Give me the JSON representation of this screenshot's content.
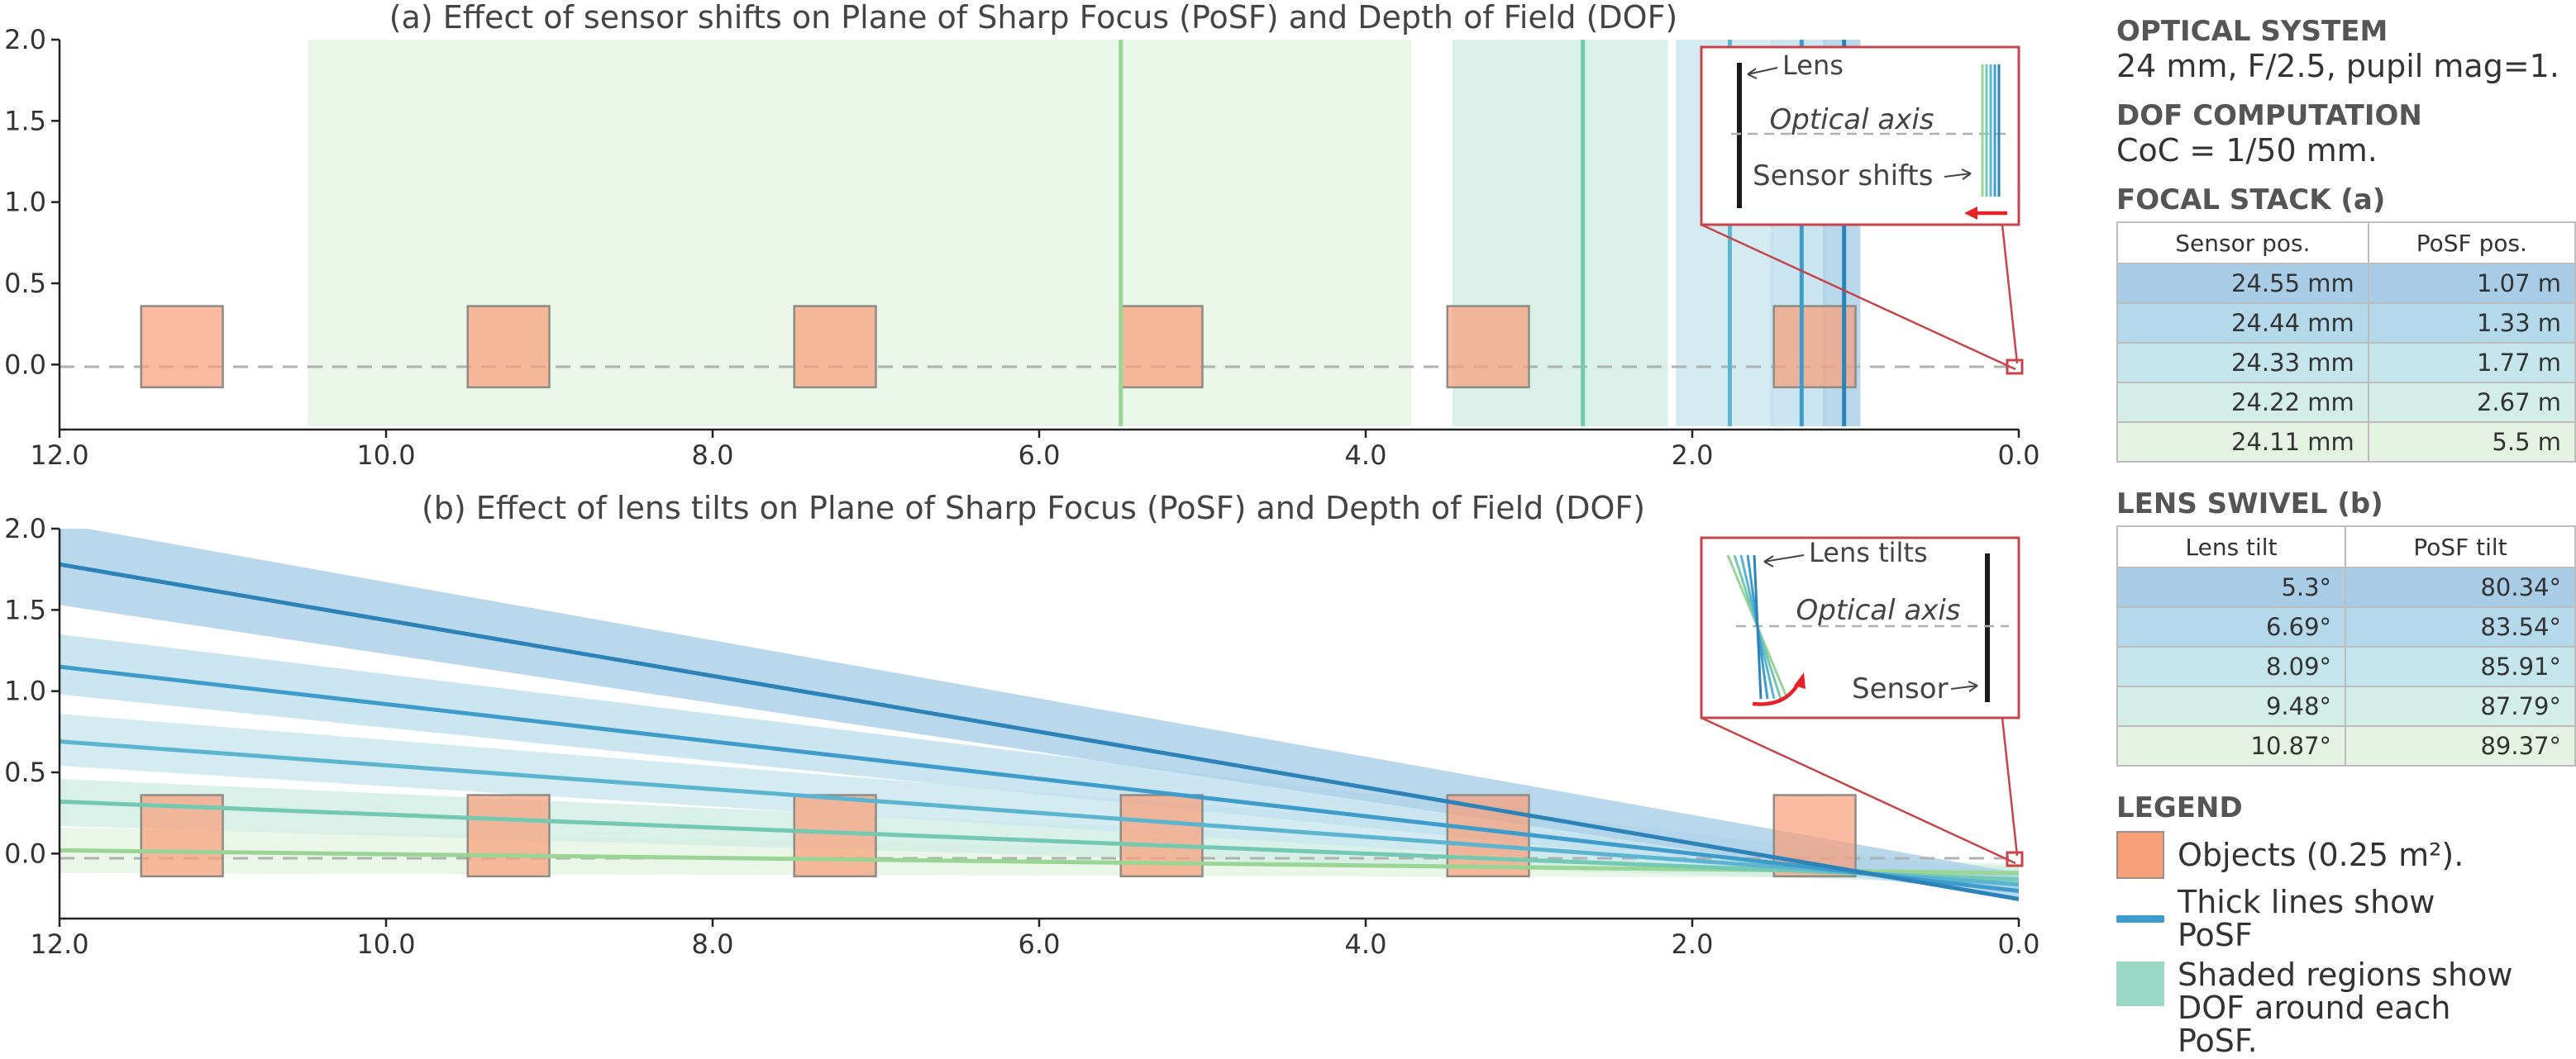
{
  "panel_a": {
    "title": "(a) Effect of sensor shifts on Plane of Sharp Focus (PoSF) and Depth of Field (DOF)",
    "inset": {
      "lens_label": "Lens",
      "axis_label": "Optical axis",
      "sensor_label": "Sensor shifts"
    }
  },
  "panel_b": {
    "title": "(b) Effect of lens tilts on Plane of Sharp Focus (PoSF) and Depth of Field (DOF)",
    "inset": {
      "lens_label": "Lens tilts",
      "axis_label": "Optical axis",
      "sensor_label": "Sensor"
    }
  },
  "side": {
    "optical_heading": "OPTICAL SYSTEM",
    "optical_text": "24 mm, F/2.5, pupil mag=1.",
    "dof_heading": "DOF COMPUTATION",
    "dof_text": "CoC = 1/50 mm.",
    "focal_heading": "FOCAL STACK (a)",
    "focal_table": {
      "headers": [
        "Sensor pos.",
        "PoSF pos."
      ],
      "rows": [
        [
          "24.55 mm",
          "1.07 m"
        ],
        [
          "24.44 mm",
          "1.33 m"
        ],
        [
          "24.33 mm",
          "1.77 m"
        ],
        [
          "24.22 mm",
          "2.67 m"
        ],
        [
          "24.11 mm",
          "5.5 m"
        ]
      ]
    },
    "swivel_heading": "LENS SWIVEL (b)",
    "swivel_table": {
      "headers": [
        "Lens tilt",
        "PoSF tilt"
      ],
      "rows": [
        [
          "5.3°",
          "80.34°"
        ],
        [
          "6.69°",
          "83.54°"
        ],
        [
          "8.09°",
          "85.91°"
        ],
        [
          "9.48°",
          "87.79°"
        ],
        [
          "10.87°",
          "89.37°"
        ]
      ]
    },
    "legend_heading": "LEGEND",
    "legend": [
      {
        "label": "Objects (0.25 m²)."
      },
      {
        "label": "Thick lines show PoSF"
      },
      {
        "label": "Shaded regions show",
        "label2": "DOF around each PoSF."
      }
    ]
  },
  "chart_data": [
    {
      "type": "diagram",
      "title": "(a) Effect of sensor shifts on Plane of Sharp Focus (PoSF) and Depth of Field (DOF)",
      "xlim": [
        12.0,
        0.0
      ],
      "ylim": [
        -0.4,
        2.0
      ],
      "x_ticks": [
        "12.0",
        "10.0",
        "8.0",
        "6.0",
        "4.0",
        "2.0",
        "0.0"
      ],
      "y_ticks": [
        "2.0",
        "1.5",
        "1.0",
        "0.5",
        "0.0"
      ],
      "objects": [
        {
          "x": [
            11.0,
            11.5
          ],
          "y": [
            -0.14,
            0.36
          ]
        },
        {
          "x": [
            9.0,
            9.5
          ],
          "y": [
            -0.14,
            0.36
          ]
        },
        {
          "x": [
            7.0,
            7.5
          ],
          "y": [
            -0.14,
            0.36
          ]
        },
        {
          "x": [
            5.0,
            5.5
          ],
          "y": [
            -0.14,
            0.36
          ]
        },
        {
          "x": [
            3.0,
            3.5
          ],
          "y": [
            -0.14,
            0.36
          ]
        },
        {
          "x": [
            1.0,
            1.5
          ],
          "y": [
            -0.14,
            0.36
          ]
        }
      ],
      "series": [
        {
          "posf": 1.07,
          "dof": [
            0.97,
            1.2
          ],
          "color": "#2b83ba"
        },
        {
          "posf": 1.33,
          "dof": [
            1.18,
            1.52
          ],
          "color": "#3d9ccb"
        },
        {
          "posf": 1.77,
          "dof": [
            1.5,
            2.1
          ],
          "color": "#5bb5d0"
        },
        {
          "posf": 2.67,
          "dof": [
            2.15,
            3.47
          ],
          "color": "#74c9b4"
        },
        {
          "posf": 5.5,
          "dof": [
            3.72,
            10.48
          ],
          "color": "#99d594"
        }
      ]
    },
    {
      "type": "diagram",
      "title": "(b) Effect of lens tilts on Plane of Sharp Focus (PoSF) and Depth of Field (DOF)",
      "xlim": [
        12.0,
        0.0
      ],
      "ylim": [
        -0.4,
        2.0
      ],
      "x_ticks": [
        "12.0",
        "10.0",
        "8.0",
        "6.0",
        "4.0",
        "2.0",
        "0.0"
      ],
      "y_ticks": [
        "2.0",
        "1.5",
        "1.0",
        "0.5",
        "0.0"
      ],
      "objects": [
        {
          "x": [
            11.0,
            11.5
          ],
          "y": [
            -0.14,
            0.36
          ]
        },
        {
          "x": [
            9.0,
            9.5
          ],
          "y": [
            -0.14,
            0.36
          ]
        },
        {
          "x": [
            7.0,
            7.5
          ],
          "y": [
            -0.14,
            0.36
          ]
        },
        {
          "x": [
            5.0,
            5.5
          ],
          "y": [
            -0.14,
            0.36
          ]
        },
        {
          "x": [
            3.0,
            3.5
          ],
          "y": [
            -0.14,
            0.36
          ]
        },
        {
          "x": [
            1.0,
            1.5
          ],
          "y": [
            -0.14,
            0.36
          ]
        }
      ],
      "series": [
        {
          "line": [
            [
              12.0,
              1.78
            ],
            [
              0.0,
              -0.28
            ]
          ],
          "dof_upper": [
            [
              12.0,
              2.03
            ],
            [
              0.0,
              -0.12
            ]
          ],
          "dof_lower": [
            [
              12.0,
              1.53
            ],
            [
              0.0,
              -0.28
            ]
          ],
          "color": "#2b83ba"
        },
        {
          "line": [
            [
              12.0,
              1.15
            ],
            [
              0.0,
              -0.23
            ]
          ],
          "dof_upper": [
            [
              12.0,
              1.35
            ],
            [
              0.0,
              -0.12
            ]
          ],
          "dof_lower": [
            [
              12.0,
              0.98
            ],
            [
              0.0,
              -0.25
            ]
          ],
          "color": "#3d9ccb"
        },
        {
          "line": [
            [
              12.0,
              0.69
            ],
            [
              0.0,
              -0.19
            ]
          ],
          "dof_upper": [
            [
              12.0,
              0.86
            ],
            [
              0.0,
              -0.1
            ]
          ],
          "dof_lower": [
            [
              12.0,
              0.54
            ],
            [
              0.0,
              -0.21
            ]
          ],
          "color": "#5bb5d0"
        },
        {
          "line": [
            [
              12.0,
              0.32
            ],
            [
              0.0,
              -0.16
            ]
          ],
          "dof_upper": [
            [
              12.0,
              0.46
            ],
            [
              0.0,
              -0.08
            ]
          ],
          "dof_lower": [
            [
              12.0,
              0.17
            ],
            [
              0.0,
              -0.19
            ]
          ],
          "color": "#74c9b4"
        },
        {
          "line": [
            [
              12.0,
              0.02
            ],
            [
              0.0,
              -0.12
            ]
          ],
          "dof_upper": [
            [
              12.0,
              0.16
            ],
            [
              0.0,
              -0.06
            ]
          ],
          "dof_lower": [
            [
              12.0,
              -0.12
            ],
            [
              0.0,
              -0.15
            ]
          ],
          "color": "#99d594"
        }
      ]
    }
  ]
}
